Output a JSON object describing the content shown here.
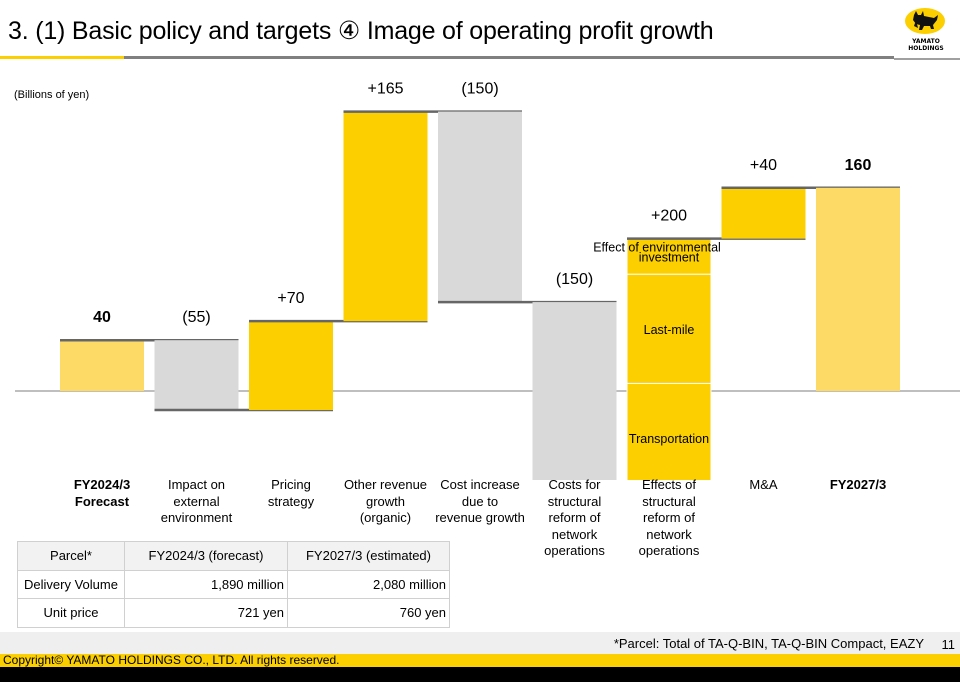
{
  "header": {
    "title": "3. (1) Basic policy and targets ④ Image of operating profit growth",
    "logo_text_line1": "YAMATO",
    "logo_text_line2": "HOLDINGS"
  },
  "colors": {
    "accent_yellow": "#fccf00",
    "total_bar": "#fdd966",
    "increase_bar": "#fccf00",
    "decrease_bar": "#d9d9d9",
    "connector": "#666666",
    "baseline": "#bfbfbf"
  },
  "chart_data": {
    "type": "waterfall",
    "title": "Image of operating profit growth",
    "unit_label": "(Billions of yen)",
    "ylabel": "Billions of yen",
    "steps": [
      {
        "category": "FY2024/3\nForecast",
        "kind": "total",
        "value": 40,
        "label": "40",
        "bold": true
      },
      {
        "category": "Impact on\nexternal\nenvironment",
        "kind": "decrease",
        "value": -55,
        "label": "(55)"
      },
      {
        "category": "Pricing\nstrategy",
        "kind": "increase",
        "value": 70,
        "label": "+70"
      },
      {
        "category": "Other revenue\ngrowth\n(organic)",
        "kind": "increase",
        "value": 165,
        "label": "+165"
      },
      {
        "category": "Cost increase\ndue to\nrevenue growth",
        "kind": "decrease",
        "value": -150,
        "label": "(150)"
      },
      {
        "category": "Costs for\nstructural\nreform of\nnetwork\noperations",
        "kind": "decrease",
        "value": -150,
        "label": "(150)"
      },
      {
        "category": "Effects of\nstructural\nreform of\nnetwork\noperations",
        "kind": "increase",
        "value": 200,
        "label": "+200",
        "segments": [
          {
            "name": "Transportation",
            "share": 0.43
          },
          {
            "name": "Last-mile",
            "share": 0.43
          },
          {
            "name": "Effect of environmental investment",
            "share": 0.14
          }
        ]
      },
      {
        "category": "M&A",
        "kind": "increase",
        "value": 40,
        "label": "+40"
      },
      {
        "category": "FY2027/3",
        "kind": "total",
        "value": 160,
        "label": "160",
        "bold": true
      }
    ]
  },
  "table": {
    "headers": [
      "Parcel*",
      "FY2024/3 (forecast)",
      "FY2027/3 (estimated)"
    ],
    "rows": [
      [
        "Delivery Volume",
        "1,890 million",
        "2,080 million"
      ],
      [
        "Unit price",
        "721 yen",
        "760 yen"
      ]
    ]
  },
  "footer": {
    "footnote": "*Parcel: Total of TA-Q-BIN, TA-Q-BIN Compact, EAZY",
    "page_number": "11",
    "copyright": "Copyright© YAMATO HOLDINGS CO., LTD. All rights reserved."
  }
}
